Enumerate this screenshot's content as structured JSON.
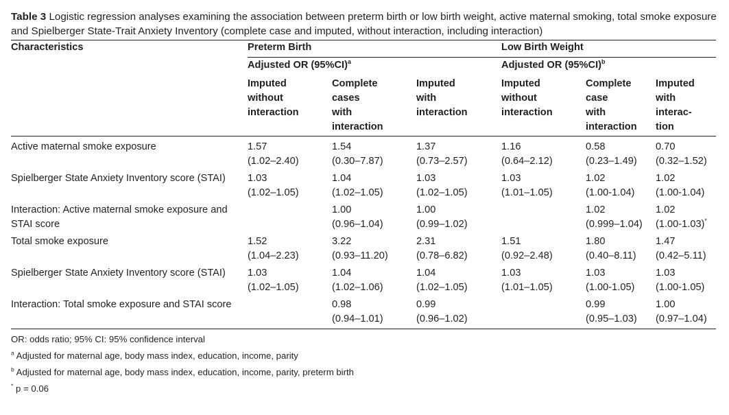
{
  "caption": {
    "label": "Table 3",
    "text": "Logistic regression analyses examining the association between preterm birth or low birth weight, active maternal smoking, total smoke exposure and Spielberger State-Trait Anxiety Inventory (complete case and imputed, without interaction, including interaction)"
  },
  "header": {
    "characteristics": "Characteristics",
    "preterm": "Preterm Birth",
    "lbw": "Low Birth Weight",
    "adj_or": "Adjusted OR (95%CI)",
    "sup_a": "a",
    "sup_b": "b",
    "cols": [
      [
        "Imputed",
        "without",
        "interaction",
        ""
      ],
      [
        "Complete",
        "cases",
        "with",
        "interaction"
      ],
      [
        "Imputed",
        "with",
        "interaction",
        ""
      ],
      [
        "Imputed",
        "without",
        "interaction",
        ""
      ],
      [
        "Complete",
        "case",
        "with",
        "interaction"
      ],
      [
        "Imputed",
        "with",
        "interac-",
        "tion"
      ]
    ]
  },
  "rows": [
    {
      "label": [
        "Active maternal smoke exposure",
        ""
      ],
      "cells": [
        [
          "1.57",
          "(1.02–2.40)"
        ],
        [
          "1.54",
          "(0.30–7.87)"
        ],
        [
          "1.37",
          "(0.73–2.57)"
        ],
        [
          "1.16",
          "(0.64–2.12)"
        ],
        [
          "0.58",
          "(0.23–1.49)"
        ],
        [
          "0.70",
          "(0.32–1.52)"
        ]
      ]
    },
    {
      "label": [
        "Spielberger State Anxiety Inventory score (STAI)",
        ""
      ],
      "cells": [
        [
          "1.03",
          "(1.02–1.05)"
        ],
        [
          "1.04",
          "(1.02–1.05)"
        ],
        [
          "1.03",
          "(1.02–1.05)"
        ],
        [
          "1.03",
          "(1.01–1.05)"
        ],
        [
          "1.02",
          "(1.00-1.04)"
        ],
        [
          "1.02",
          "(1.00-1.04)"
        ]
      ]
    },
    {
      "label": [
        "Interaction: Active maternal smoke exposure and",
        "STAI score"
      ],
      "cells": [
        [
          "",
          ""
        ],
        [
          "1.00",
          "(0.96–1.04)"
        ],
        [
          "1.00",
          "(0.99–1.02)"
        ],
        [
          "",
          ""
        ],
        [
          "1.02",
          "(0.999–1.04)"
        ],
        [
          "1.02",
          "(1.00-1.03)"
        ]
      ],
      "star_col": 5
    },
    {
      "label": [
        "Total smoke exposure",
        ""
      ],
      "cells": [
        [
          "1.52",
          "(1.04–2.23)"
        ],
        [
          "3.22",
          "(0.93–11.20)"
        ],
        [
          "2.31",
          "(0.78–6.82)"
        ],
        [
          "1.51",
          "(0.92–2.48)"
        ],
        [
          "1.80",
          "(0.40–8.11)"
        ],
        [
          "1.47",
          "(0.42–5.11)"
        ]
      ]
    },
    {
      "label": [
        "Spielberger State Anxiety Inventory score (STAI)",
        ""
      ],
      "cells": [
        [
          "1.03",
          "(1.02–1.05)"
        ],
        [
          "1.04",
          "(1.02–1.06)"
        ],
        [
          "1.04",
          "(1.02–1.05)"
        ],
        [
          "1.03",
          "(1.01–1.05)"
        ],
        [
          "1.03",
          "(1.00-1.05)"
        ],
        [
          "1.03",
          "(1.00-1.05)"
        ]
      ]
    },
    {
      "label": [
        "Interaction: Total smoke exposure and STAI score",
        ""
      ],
      "cells": [
        [
          "",
          ""
        ],
        [
          "0.98",
          "(0.94–1.01)"
        ],
        [
          "0.99",
          "(0.96–1.02)"
        ],
        [
          "",
          ""
        ],
        [
          "0.99",
          "(0.95–1.03)"
        ],
        [
          "1.00",
          "(0.97–1.04)"
        ]
      ]
    }
  ],
  "star": "*",
  "notes": {
    "or": "OR: odds ratio; 95% CI: 95% confidence interval",
    "a_mark": "a",
    "a_text": "Adjusted for maternal age, body mass index, education, income, parity",
    "b_mark": "b",
    "b_text": "Adjusted for maternal age, body mass index, education, income, parity, preterm birth",
    "star_mark": "*",
    "star_text": "p = 0.06"
  }
}
